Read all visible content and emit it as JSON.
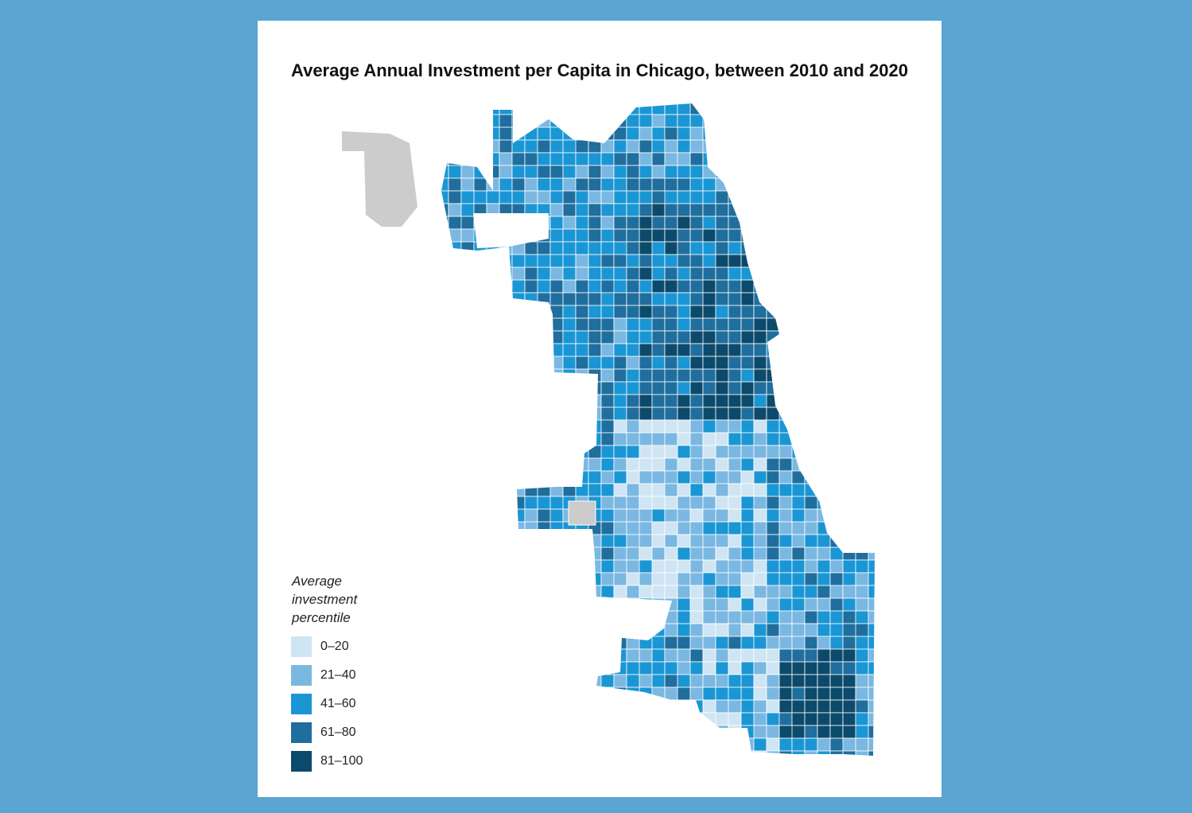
{
  "title": "Average Annual Investment per Capita in Chicago, between 2010 and 2020",
  "legend": {
    "title": "Average investment percentile",
    "items": [
      {
        "label": "0–20",
        "color": "#cfe5f3"
      },
      {
        "label": "21–40",
        "color": "#7ab8e2"
      },
      {
        "label": "41–60",
        "color": "#1a96d4"
      },
      {
        "label": "61–80",
        "color": "#1f6e9e"
      },
      {
        "label": "81–100",
        "color": "#0c4a6b"
      }
    ]
  },
  "no_data_color": "#cccccc"
}
